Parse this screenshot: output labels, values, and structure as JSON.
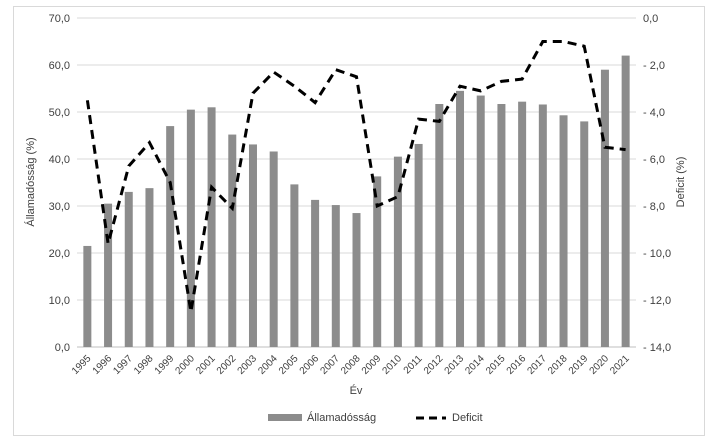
{
  "chart_data": {
    "type": "bar+line",
    "xlabel": "Év",
    "ylabel_left": "Államadósság (%)",
    "ylabel_right": "Deficit (%)",
    "ylim_left": [
      0,
      70
    ],
    "ylim_right": [
      -14,
      0
    ],
    "yticks_left": [
      "0,0",
      "10,0",
      "20,0",
      "30,0",
      "40,0",
      "50,0",
      "60,0",
      "70,0"
    ],
    "yticks_right": [
      "-14,0",
      "-12,0",
      "-10,0",
      "-8,0",
      "-6,0",
      "-4,0",
      "-2,0",
      "0,0"
    ],
    "grid": true,
    "legend_position": "bottom",
    "categories": [
      "1995",
      "1996",
      "1997",
      "1998",
      "1999",
      "2000",
      "2001",
      "2002",
      "2003",
      "2004",
      "2005",
      "2006",
      "2007",
      "2008",
      "2009",
      "2010",
      "2011",
      "2012",
      "2013",
      "2014",
      "2015",
      "2016",
      "2017",
      "2018",
      "2019",
      "2020",
      "2021"
    ],
    "series": [
      {
        "name": "Államadósság",
        "type": "bar",
        "axis": "left",
        "color": "#8c8c8c",
        "values": [
          21.5,
          30.5,
          33.0,
          33.8,
          47.0,
          50.5,
          51.0,
          45.2,
          43.1,
          41.6,
          34.6,
          31.3,
          30.2,
          28.5,
          36.3,
          40.5,
          43.2,
          51.7,
          54.5,
          53.5,
          51.7,
          52.2,
          51.6,
          49.3,
          48.0,
          59.0,
          62.0
        ]
      },
      {
        "name": "Deficit",
        "type": "line",
        "style": "dashed",
        "axis": "right",
        "color": "#000000",
        "values": [
          -3.5,
          -9.6,
          -6.3,
          -5.3,
          -7.0,
          -12.5,
          -7.2,
          -8.1,
          -3.2,
          -2.3,
          -2.9,
          -3.6,
          -2.2,
          -2.5,
          -8.0,
          -7.6,
          -4.3,
          -4.4,
          -2.9,
          -3.1,
          -2.7,
          -2.6,
          -1.0,
          -1.0,
          -1.2,
          -5.5,
          -5.6
        ]
      }
    ]
  }
}
